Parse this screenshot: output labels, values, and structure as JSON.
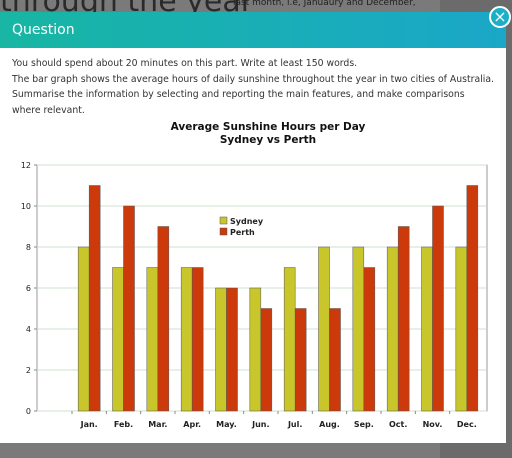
{
  "background": {
    "heading": "through the year",
    "note": "last month, i.e, Januaury and December,"
  },
  "modal": {
    "title": "Question",
    "paragraphs": [
      "You should spend about 20 minutes on this part. Write at least 150 words.",
      "The bar graph shows the average hours of daily sunshine throughout the year in two cities of Australia. Summarise the information by selecting and reporting the main features, and make comparisons where relevant."
    ]
  },
  "chart_data": {
    "type": "bar",
    "title": "Average Sunshine Hours per Day",
    "subtitle": "Sydney vs Perth",
    "categories": [
      "Jan.",
      "Feb.",
      "Mar.",
      "Apr.",
      "May.",
      "Jun.",
      "Jul.",
      "Aug.",
      "Sep.",
      "Oct.",
      "Nov.",
      "Dec."
    ],
    "series": [
      {
        "name": "Sydney",
        "color": "#c9c62c",
        "values": [
          8,
          7,
          7,
          7,
          6,
          6,
          7,
          8,
          8,
          8,
          8,
          8
        ]
      },
      {
        "name": "Perth",
        "color": "#cc3a0c",
        "values": [
          11,
          10,
          9,
          7,
          6,
          5,
          5,
          5,
          7,
          9,
          10,
          11
        ]
      }
    ],
    "ylim": [
      0,
      12
    ],
    "yticks": [
      0,
      2,
      4,
      6,
      8,
      10,
      12
    ],
    "grid": true,
    "legend": "upper center"
  }
}
